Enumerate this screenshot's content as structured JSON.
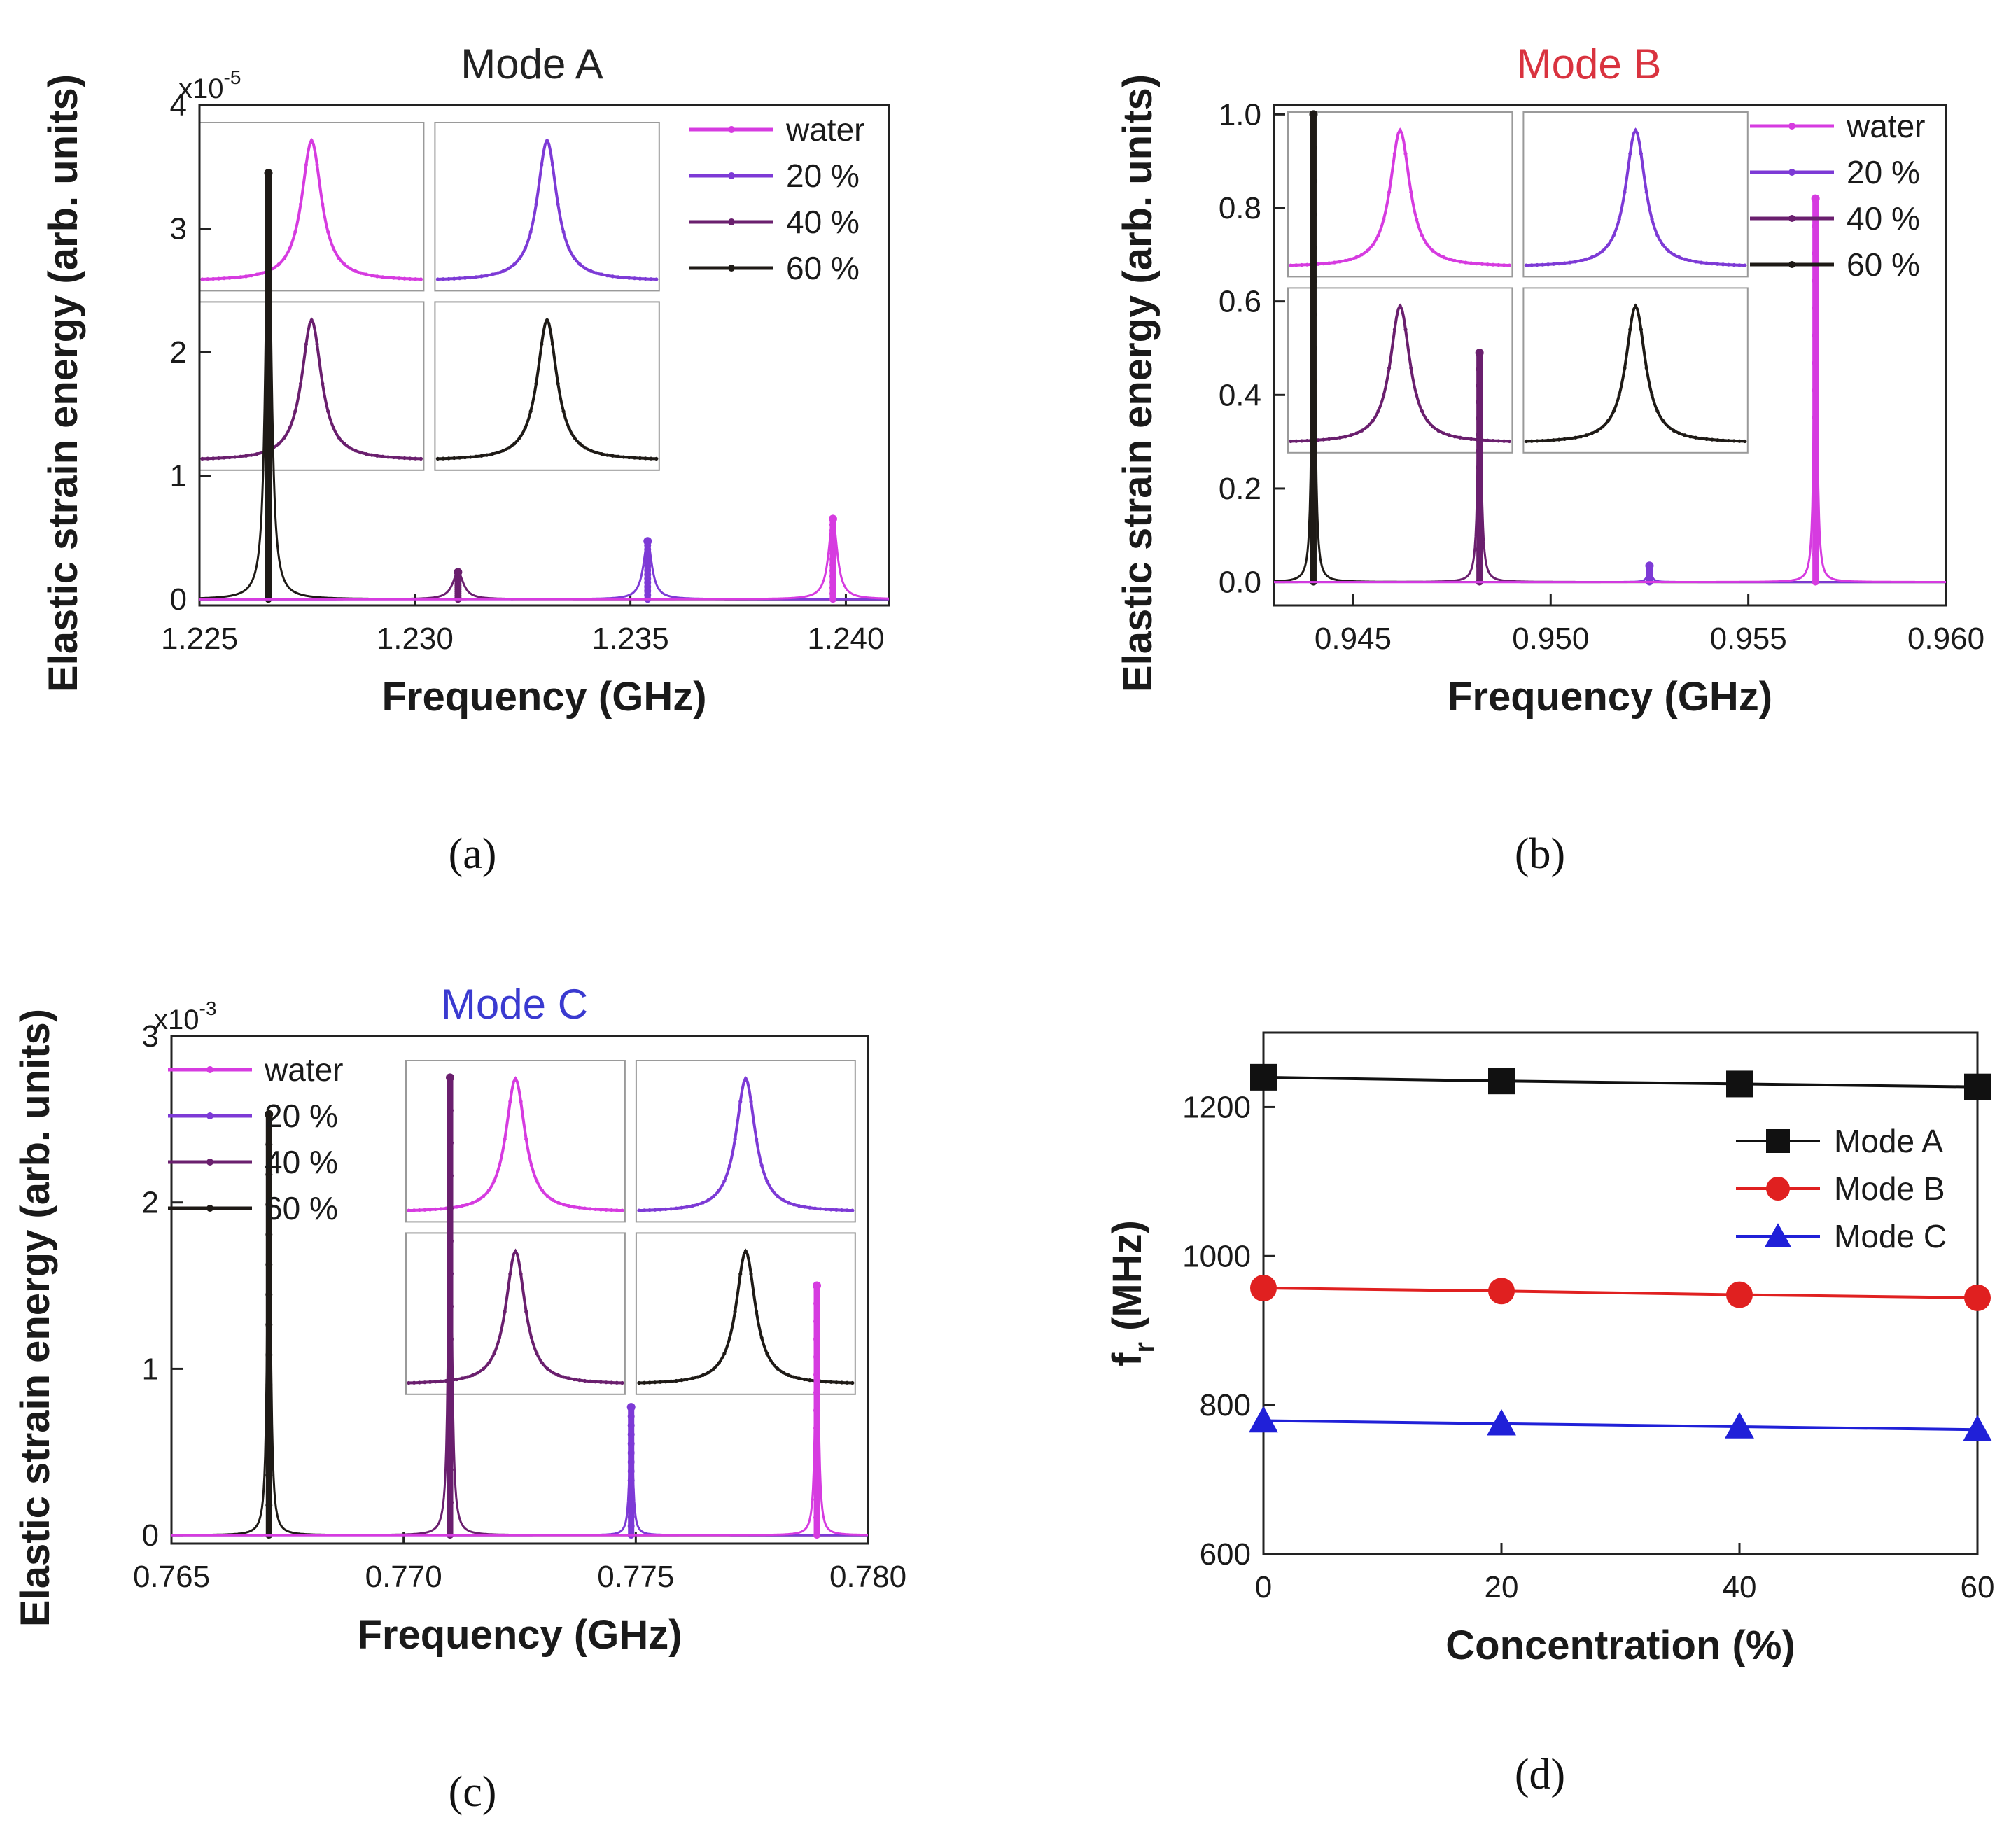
{
  "chart_data": [
    {
      "type": "line",
      "panel": "a",
      "caption": "(a)",
      "title": "Mode A",
      "title_color": "#222222",
      "xlabel": "Frequency (GHz)",
      "ylabel": "Elastic strain energy (arb. units)",
      "y_exponent_label": "x10",
      "y_exponent_power": "-5",
      "xlim": [
        1.225,
        1.241
      ],
      "ylim": [
        -0.05,
        4.0
      ],
      "xticks": [
        1.225,
        1.23,
        1.235,
        1.24
      ],
      "xtick_labels": [
        "1.225",
        "1.230",
        "1.235",
        "1.240"
      ],
      "yticks": [
        0,
        1,
        2,
        3,
        4
      ],
      "ytick_labels": [
        "0",
        "1",
        "2",
        "3",
        "4"
      ],
      "legend_position": "top-right",
      "series": [
        {
          "name": "water",
          "color": "#d63be0",
          "peak_x": 1.2397,
          "peak_y": 0.65,
          "width": 0.00012
        },
        {
          "name": "20 %",
          "color": "#7d3ad6",
          "peak_x": 1.2354,
          "peak_y": 0.47,
          "width": 0.00012
        },
        {
          "name": "40 %",
          "color": "#6a1f6e",
          "peak_x": 1.231,
          "peak_y": 0.22,
          "width": 0.00015
        },
        {
          "name": "60 %",
          "color": "#1e1a16",
          "peak_x": 1.2266,
          "peak_y": 3.45,
          "width": 8e-05
        }
      ]
    },
    {
      "type": "line",
      "panel": "b",
      "caption": "(b)",
      "title": "Mode B",
      "title_color": "#d9333f",
      "xlabel": "Frequency (GHz)",
      "ylabel": "Elastic strain energy (arb. units)",
      "xlim": [
        0.943,
        0.96
      ],
      "ylim": [
        -0.05,
        1.02
      ],
      "xticks": [
        0.945,
        0.95,
        0.955,
        0.96
      ],
      "xtick_labels": [
        "0.945",
        "0.950",
        "0.955",
        "0.960"
      ],
      "yticks": [
        0.0,
        0.2,
        0.4,
        0.6,
        0.8,
        1.0
      ],
      "ytick_labels": [
        "0.0",
        "0.2",
        "0.4",
        "0.6",
        "0.8",
        "1.0"
      ],
      "legend_position": "top-right",
      "series": [
        {
          "name": "water",
          "color": "#d63be0",
          "peak_x": 0.9567,
          "peak_y": 0.82,
          "width": 4e-05
        },
        {
          "name": "20 %",
          "color": "#7d3ad6",
          "peak_x": 0.9525,
          "peak_y": 0.035,
          "width": 5e-05
        },
        {
          "name": "40 %",
          "color": "#6a1f6e",
          "peak_x": 0.9482,
          "peak_y": 0.49,
          "width": 5e-05
        },
        {
          "name": "60 %",
          "color": "#1e1a16",
          "peak_x": 0.944,
          "peak_y": 1.0,
          "width": 4e-05
        }
      ]
    },
    {
      "type": "line",
      "panel": "c",
      "caption": "(c)",
      "title": "Mode C",
      "title_color": "#3a3ad0",
      "xlabel": "Frequency (GHz)",
      "ylabel": "Elastic strain energy (arb. units)",
      "y_exponent_label": "x10",
      "y_exponent_power": "-3",
      "xlim": [
        0.765,
        0.78
      ],
      "ylim": [
        -0.05,
        3.0
      ],
      "xticks": [
        0.765,
        0.77,
        0.775,
        0.78
      ],
      "xtick_labels": [
        "0.765",
        "0.770",
        "0.775",
        "0.780"
      ],
      "yticks": [
        0,
        1,
        2,
        3
      ],
      "ytick_labels": [
        "0",
        "1",
        "2",
        "3"
      ],
      "legend_position": "top-left",
      "series": [
        {
          "name": "water",
          "color": "#d63be0",
          "peak_x": 0.7789,
          "peak_y": 1.5,
          "width": 4e-05
        },
        {
          "name": "20 %",
          "color": "#7d3ad6",
          "peak_x": 0.7749,
          "peak_y": 0.77,
          "width": 4e-05
        },
        {
          "name": "40 %",
          "color": "#6a1f6e",
          "peak_x": 0.771,
          "peak_y": 2.75,
          "width": 4e-05
        },
        {
          "name": "60 %",
          "color": "#1e1a16",
          "peak_x": 0.7671,
          "peak_y": 2.53,
          "width": 4e-05
        }
      ]
    },
    {
      "type": "line",
      "panel": "d",
      "caption": "(d)",
      "title": "",
      "xlabel": "Concentration (%)",
      "ylabel": "f",
      "ylabel_subscript": "r",
      "ylabel_suffix": " (MHz)",
      "xlim": [
        0,
        60
      ],
      "ylim": [
        600,
        1300
      ],
      "xticks": [
        0,
        20,
        40,
        60
      ],
      "xtick_labels": [
        "0",
        "20",
        "40",
        "60"
      ],
      "yticks": [
        600,
        800,
        1000,
        1200
      ],
      "ytick_labels": [
        "600",
        "800",
        "1000",
        "1200"
      ],
      "legend_position": "center-right",
      "x": [
        0,
        20,
        40,
        60
      ],
      "series": [
        {
          "name": "Mode A",
          "color": "#111111",
          "marker": "square",
          "values": [
            1240,
            1235,
            1231,
            1227
          ]
        },
        {
          "name": "Mode B",
          "color": "#e02020",
          "marker": "circle",
          "values": [
            957,
            953,
            948,
            944
          ]
        },
        {
          "name": "Mode C",
          "color": "#2020d8",
          "marker": "triangle",
          "values": [
            779,
            775,
            771,
            767
          ]
        }
      ]
    }
  ]
}
